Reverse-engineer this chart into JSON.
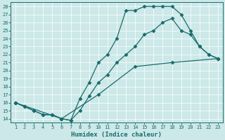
{
  "xlabel": "Humidex (Indice chaleur)",
  "bg_color": "#cce8e8",
  "line_color": "#1a6b6b",
  "grid_color": "#ffffff",
  "xlim": [
    0.5,
    23.5
  ],
  "ylim": [
    13.5,
    28.5
  ],
  "xticks": [
    1,
    2,
    3,
    4,
    5,
    6,
    7,
    8,
    9,
    10,
    11,
    12,
    13,
    14,
    15,
    16,
    17,
    18,
    19,
    20,
    21,
    22,
    23
  ],
  "yticks": [
    14,
    15,
    16,
    17,
    18,
    19,
    20,
    21,
    22,
    23,
    24,
    25,
    26,
    27,
    28
  ],
  "line1_x": [
    1,
    2,
    3,
    4,
    5,
    6,
    7,
    8,
    9,
    10,
    11,
    12,
    13,
    14,
    15,
    16,
    17,
    18,
    19,
    20,
    21,
    22,
    23
  ],
  "line1_y": [
    16,
    15.5,
    15,
    14.5,
    14.5,
    14,
    13.8,
    16.5,
    18.5,
    21,
    22,
    24,
    27.5,
    27.5,
    28,
    28,
    28,
    28,
    27,
    25,
    23,
    22,
    21.5
  ],
  "line2_x": [
    1,
    2,
    3,
    4,
    5,
    6,
    7,
    8,
    9,
    10,
    11,
    12,
    13,
    14,
    15,
    16,
    17,
    18,
    19,
    20,
    21,
    22,
    23
  ],
  "line2_y": [
    16,
    15.5,
    15,
    14.5,
    14.5,
    14,
    13.8,
    15,
    16.8,
    18.5,
    19.5,
    21,
    22,
    23,
    24.5,
    25,
    26,
    26.5,
    25,
    24.5,
    23,
    22,
    21.5
  ],
  "line3_x": [
    1,
    6,
    10,
    14,
    18,
    23
  ],
  "line3_y": [
    16,
    14,
    17,
    20.5,
    21,
    21.5
  ],
  "markersize": 2.5,
  "linewidth": 0.9,
  "tick_fontsize": 5.0,
  "xlabel_fontsize": 6.5
}
